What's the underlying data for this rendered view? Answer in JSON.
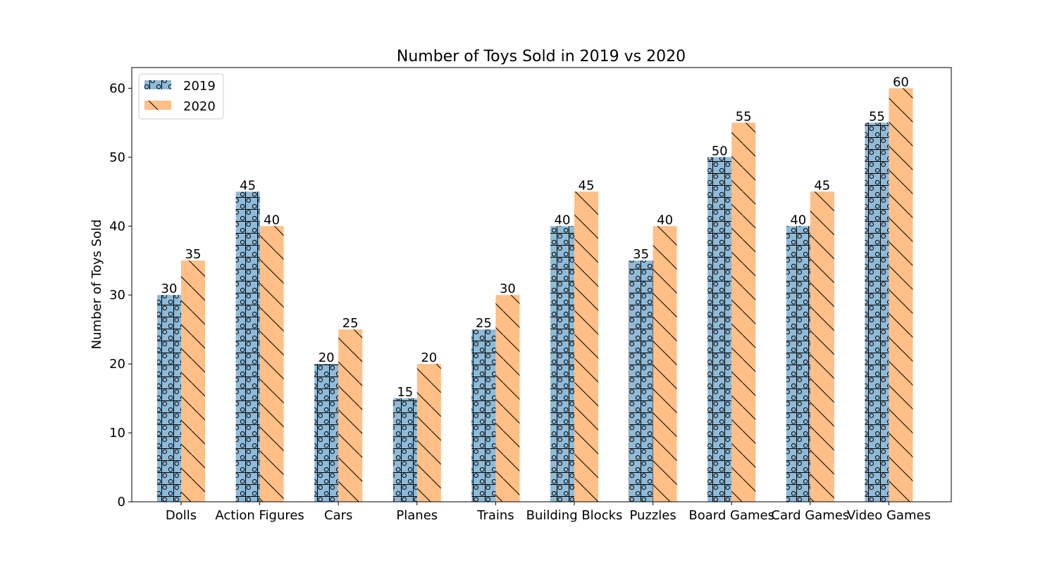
{
  "chart_data": {
    "type": "bar",
    "title": "Number of Toys Sold in 2019 vs 2020",
    "xlabel": "",
    "ylabel": "Number of Toys Sold",
    "categories": [
      "Dolls",
      "Action Figures",
      "Cars",
      "Planes",
      "Trains",
      "Building Blocks",
      "Puzzles",
      "Board Games",
      "Card Games",
      "Video Games"
    ],
    "series": [
      {
        "name": "2019",
        "values": [
          30,
          45,
          20,
          15,
          25,
          40,
          35,
          50,
          40,
          55
        ],
        "color": "#1f77b4"
      },
      {
        "name": "2020",
        "values": [
          35,
          40,
          25,
          20,
          30,
          45,
          40,
          55,
          45,
          60
        ],
        "color": "#ff7f0e"
      }
    ],
    "ylim": [
      0,
      63
    ],
    "yticks": [
      0,
      10,
      20,
      30,
      40,
      50,
      60
    ],
    "grid": false,
    "legend_position": "top-left"
  }
}
